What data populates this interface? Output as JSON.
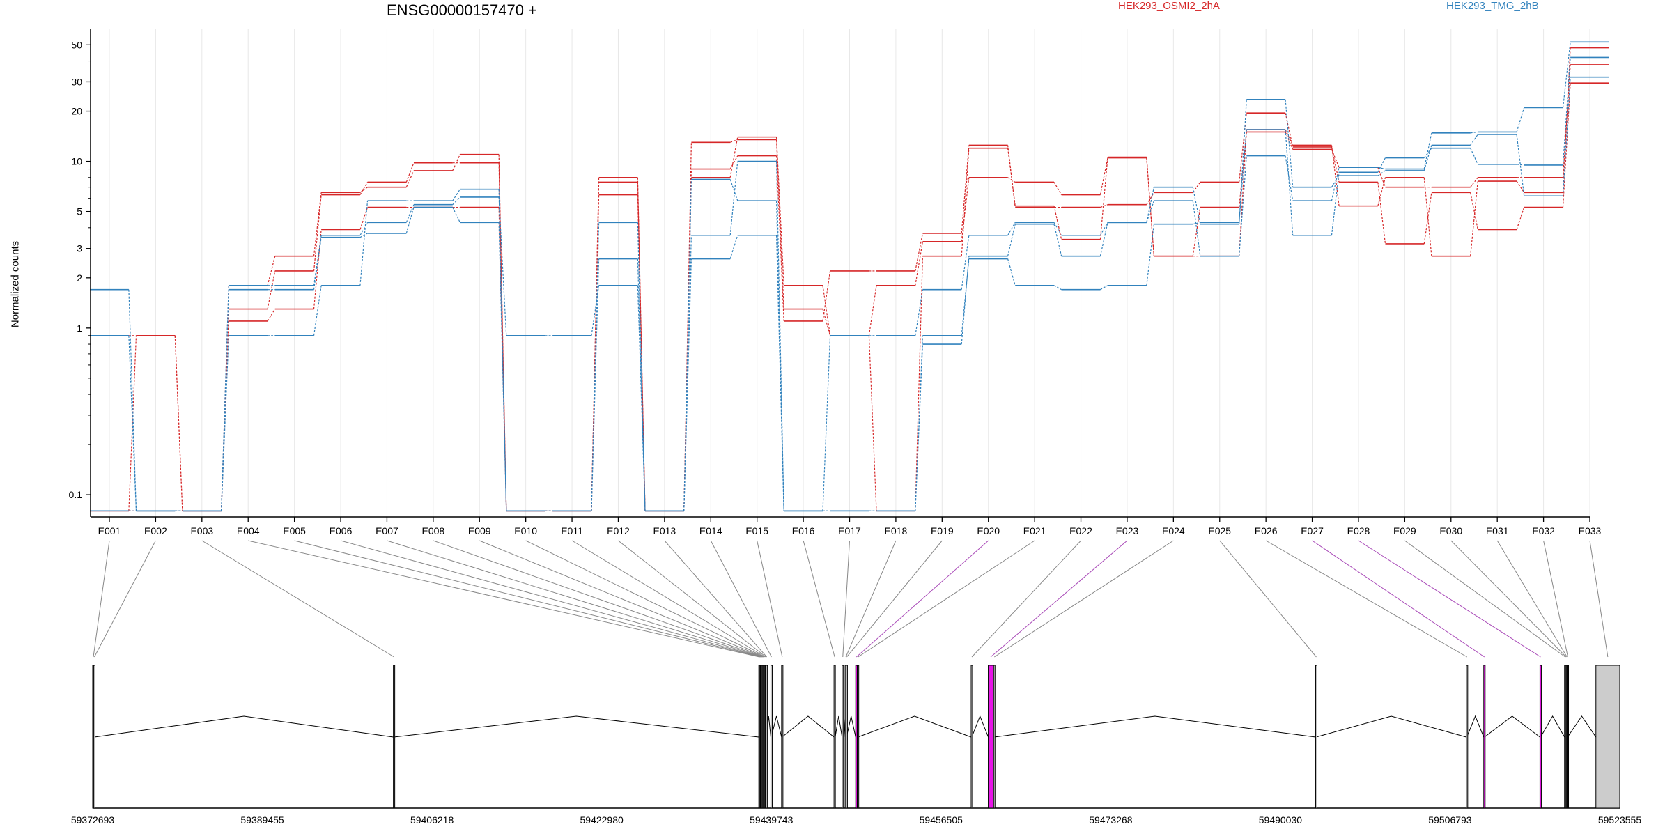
{
  "colors": {
    "HEK293_OSMI2_2hA": "#d62728",
    "HEK293_TMG_2hB": "#3182bd",
    "exon_default": "#cccccc",
    "exon_highlight": "#e815e8",
    "connector_default": "#888888",
    "connector_highlight": "#a94ab8"
  },
  "chart_data": {
    "type": "line",
    "title": "ENSG00000157470 +",
    "ylabel": "Normalized counts",
    "xlabel": "",
    "y_scale": "log",
    "y_ticks": [
      0.1,
      1,
      2,
      3,
      5,
      10,
      20,
      30,
      50
    ],
    "y_floor": 0.08,
    "grid": true,
    "legend": [
      "HEK293_OSMI2_2hA",
      "HEK293_TMG_2hB"
    ],
    "categories": [
      "E001",
      "E002",
      "E003",
      "E004",
      "E005",
      "E006",
      "E007",
      "E008",
      "E009",
      "E010",
      "E011",
      "E012",
      "E013",
      "E014",
      "E015",
      "E016",
      "E017",
      "E018",
      "E019",
      "E020",
      "E021",
      "E022",
      "E023",
      "E024",
      "E025",
      "E026",
      "E027",
      "E028",
      "E029",
      "E030",
      "E031",
      "E032",
      "E033"
    ],
    "series": [
      {
        "name": "",
        "group": "HEK293_OSMI2_2hA",
        "values": [
          0.9,
          0.9,
          0.08,
          1.1,
          1.3,
          3.9,
          5.3,
          5.3,
          5.3,
          0.08,
          0.08,
          6.3,
          0.08,
          9.0,
          10.8,
          1.1,
          2.2,
          2.2,
          3.7,
          12.5,
          5.3,
          5.3,
          5.5,
          6.5,
          7.5,
          19.5,
          12.2,
          7.5,
          3.2,
          6.5,
          3.9,
          5.3,
          29.5
        ]
      },
      {
        "name": "",
        "group": "HEK293_OSMI2_2hA",
        "values": [
          0.08,
          0.9,
          0.08,
          1.3,
          2.2,
          6.3,
          7.5,
          9.8,
          9.8,
          0.08,
          0.08,
          7.5,
          0.08,
          13.0,
          13.5,
          1.3,
          0.9,
          1.8,
          3.3,
          8.0,
          7.5,
          6.3,
          10.5,
          2.7,
          5.3,
          15.0,
          11.8,
          9.2,
          7.0,
          7.0,
          8.0,
          8.0,
          38.0
        ]
      },
      {
        "name": "",
        "group": "HEK293_OSMI2_2hA",
        "values": [
          0.08,
          0.08,
          0.08,
          1.8,
          2.7,
          6.5,
          7.0,
          8.8,
          11.0,
          0.08,
          0.08,
          8.0,
          0.08,
          8.0,
          14.0,
          1.8,
          0.9,
          0.08,
          2.7,
          12.0,
          5.4,
          3.4,
          10.6,
          2.7,
          2.7,
          15.5,
          12.5,
          5.4,
          8.0,
          2.7,
          7.6,
          6.5,
          48.0
        ]
      },
      {
        "name": "",
        "group": "HEK293_TMG_2hB",
        "values": [
          1.7,
          0.08,
          0.08,
          1.7,
          1.7,
          3.5,
          3.7,
          5.3,
          4.3,
          0.08,
          0.08,
          2.6,
          0.08,
          2.6,
          3.6,
          0.08,
          0.08,
          0.08,
          0.9,
          2.6,
          1.8,
          1.7,
          1.8,
          4.2,
          4.3,
          15.5,
          3.6,
          8.6,
          10.5,
          12.0,
          9.6,
          9.5,
          42.0
        ]
      },
      {
        "name": "",
        "group": "HEK293_TMG_2hB",
        "values": [
          0.9,
          0.08,
          0.08,
          1.8,
          1.8,
          3.6,
          4.3,
          5.5,
          6.1,
          0.9,
          0.9,
          1.8,
          0.08,
          7.8,
          5.8,
          0.08,
          0.9,
          0.9,
          1.7,
          3.6,
          4.3,
          3.6,
          4.3,
          5.8,
          2.7,
          10.8,
          5.8,
          9.2,
          9.0,
          14.8,
          15.0,
          21.0,
          52.0
        ]
      },
      {
        "name": "",
        "group": "HEK293_TMG_2hB",
        "values": [
          0.08,
          0.08,
          0.08,
          0.9,
          0.9,
          1.8,
          5.8,
          5.8,
          6.8,
          0.08,
          0.08,
          4.3,
          0.08,
          3.6,
          10.0,
          0.08,
          0.08,
          0.08,
          0.8,
          2.7,
          4.2,
          2.7,
          4.3,
          7.0,
          4.2,
          23.5,
          7.0,
          8.2,
          8.8,
          12.5,
          14.5,
          6.2,
          32.0
        ]
      }
    ]
  },
  "gene_model": {
    "axis_labels": [
      "59372693",
      "59389455",
      "59406218",
      "59422980",
      "59439743",
      "59456505",
      "59473268",
      "59490030",
      "59506793",
      "59523555"
    ],
    "exons": [
      {
        "id": "E001",
        "start": 59372693,
        "end": 59372760,
        "highlight": false
      },
      {
        "id": "E002",
        "start": 59372790,
        "end": 59372870,
        "highlight": false
      },
      {
        "id": "E003",
        "start": 59402400,
        "end": 59402450,
        "highlight": false
      },
      {
        "id": "E004",
        "start": 59438500,
        "end": 59438540,
        "highlight": false
      },
      {
        "id": "E005",
        "start": 59438580,
        "end": 59438620,
        "highlight": false
      },
      {
        "id": "E006",
        "start": 59438660,
        "end": 59438700,
        "highlight": false
      },
      {
        "id": "E007",
        "start": 59438740,
        "end": 59438780,
        "highlight": false
      },
      {
        "id": "E008",
        "start": 59438820,
        "end": 59438860,
        "highlight": false
      },
      {
        "id": "E009",
        "start": 59438900,
        "end": 59438940,
        "highlight": false
      },
      {
        "id": "E010",
        "start": 59438980,
        "end": 59439020,
        "highlight": false
      },
      {
        "id": "E011",
        "start": 59439060,
        "end": 59439100,
        "highlight": false
      },
      {
        "id": "E012",
        "start": 59439140,
        "end": 59439180,
        "highlight": false
      },
      {
        "id": "E013",
        "start": 59439220,
        "end": 59439260,
        "highlight": false
      },
      {
        "id": "E014",
        "start": 59439690,
        "end": 59439740,
        "highlight": false
      },
      {
        "id": "E015",
        "start": 59440750,
        "end": 59440800,
        "highlight": false
      },
      {
        "id": "E016",
        "start": 59445930,
        "end": 59446050,
        "highlight": false
      },
      {
        "id": "E017",
        "start": 59446730,
        "end": 59446780,
        "highlight": false
      },
      {
        "id": "E018",
        "start": 59447030,
        "end": 59447080,
        "highlight": false
      },
      {
        "id": "E019",
        "start": 59447120,
        "end": 59447170,
        "highlight": false
      },
      {
        "id": "E020",
        "start": 59448070,
        "end": 59448220,
        "highlight": true
      },
      {
        "id": "E021",
        "start": 59448240,
        "end": 59448290,
        "highlight": false
      },
      {
        "id": "E022",
        "start": 59459480,
        "end": 59459540,
        "highlight": false
      },
      {
        "id": "E023",
        "start": 59461170,
        "end": 59461650,
        "highlight": true
      },
      {
        "id": "E024",
        "start": 59461700,
        "end": 59461760,
        "highlight": false
      },
      {
        "id": "E025",
        "start": 59493510,
        "end": 59493560,
        "highlight": false
      },
      {
        "id": "E026",
        "start": 59508400,
        "end": 59508450,
        "highlight": false
      },
      {
        "id": "E027",
        "start": 59510120,
        "end": 59510190,
        "highlight": true
      },
      {
        "id": "E028",
        "start": 59515670,
        "end": 59515740,
        "highlight": true
      },
      {
        "id": "E029",
        "start": 59518100,
        "end": 59518170,
        "highlight": false
      },
      {
        "id": "E030",
        "start": 59518200,
        "end": 59518240,
        "highlight": false
      },
      {
        "id": "E031",
        "start": 59518280,
        "end": 59518320,
        "highlight": false
      },
      {
        "id": "E032",
        "start": 59518360,
        "end": 59518400,
        "highlight": false
      },
      {
        "id": "E033",
        "start": 59521200,
        "end": 59523555,
        "highlight": false
      }
    ]
  }
}
